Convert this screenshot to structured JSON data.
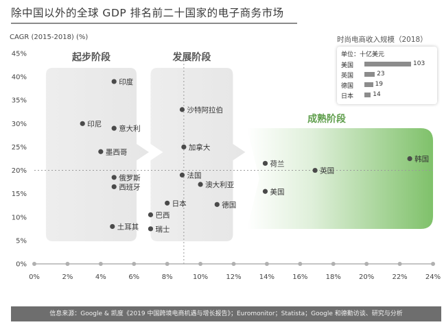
{
  "title": "除中国以外的全球 GDP 排名前二十国家的电子商务市场",
  "footer": "信息来源：Google & 凯度《2019 中国跨境电商机遇与增长报告》；Euromonitor；Statista；Google 和德勤访谈、研究与分析",
  "colors": {
    "stage_gray": "#e6e6e6",
    "stage_green": "#7fc16a",
    "dot": "#4a4a4a",
    "axis": "#b0b0b0",
    "inset_bar": "#8c8c8c"
  },
  "inset": {
    "title": "时尚电商收入规模（2018）",
    "unit": "单位：十亿美元",
    "rows": [
      {
        "label": "美国",
        "value": 103
      },
      {
        "label": "英国",
        "value": 23
      },
      {
        "label": "德国",
        "value": 19
      },
      {
        "label": "日本",
        "value": 14
      }
    ]
  },
  "chart_data": {
    "type": "scatter",
    "title": "除中国以外的全球 GDP 排名前二十国家的电子商务市场",
    "ylabel": "CAGR (2015-2018) (%)",
    "xlabel": "",
    "xlim": [
      0,
      24
    ],
    "ylim": [
      0,
      45
    ],
    "x_ticks": [
      0,
      2,
      4,
      6,
      8,
      10,
      12,
      14,
      16,
      18,
      20,
      22,
      24
    ],
    "y_ticks": [
      0,
      5,
      10,
      15,
      20,
      25,
      30,
      35,
      40,
      45
    ],
    "x_tick_labels": [
      "0%",
      "2%",
      "4%",
      "6%",
      "8%",
      "10%",
      "12%",
      "14%",
      "16%",
      "18%",
      "20%",
      "22%",
      "24%"
    ],
    "y_tick_labels": [
      "0%",
      "5%",
      "10%",
      "15%",
      "20%",
      "25%",
      "30%",
      "35%",
      "40%",
      "45%"
    ],
    "reference_lines": {
      "x": 9,
      "y": 20
    },
    "stages": [
      {
        "label": "起步阶段",
        "x_range": [
          0.7,
          6.9
        ]
      },
      {
        "label": "发展阶段",
        "x_range": [
          7.0,
          12.7
        ]
      },
      {
        "label": "成熟阶段",
        "x_range": [
          12.8,
          24.0
        ]
      }
    ],
    "points": [
      {
        "name": "印度",
        "x": 4.8,
        "y": 39
      },
      {
        "name": "印尼",
        "x": 2.9,
        "y": 30
      },
      {
        "name": "意大利",
        "x": 4.8,
        "y": 29
      },
      {
        "name": "墨西哥",
        "x": 4.0,
        "y": 24
      },
      {
        "name": "俄罗斯",
        "x": 4.8,
        "y": 18.5
      },
      {
        "name": "西班牙",
        "x": 4.8,
        "y": 16.5
      },
      {
        "name": "土耳其",
        "x": 4.7,
        "y": 8
      },
      {
        "name": "沙特阿拉伯",
        "x": 8.9,
        "y": 33
      },
      {
        "name": "加拿大",
        "x": 9.0,
        "y": 25
      },
      {
        "name": "法国",
        "x": 8.9,
        "y": 19
      },
      {
        "name": "澳大利亚",
        "x": 10.0,
        "y": 17
      },
      {
        "name": "德国",
        "x": 11.0,
        "y": 12.7
      },
      {
        "name": "日本",
        "x": 8.0,
        "y": 13
      },
      {
        "name": "巴西",
        "x": 7.0,
        "y": 10.5
      },
      {
        "name": "瑞士",
        "x": 7.0,
        "y": 7.5
      },
      {
        "name": "荷兰",
        "x": 13.9,
        "y": 21.5
      },
      {
        "name": "美国",
        "x": 13.9,
        "y": 15.5
      },
      {
        "name": "英国",
        "x": 16.9,
        "y": 20
      },
      {
        "name": "韩国",
        "x": 22.6,
        "y": 22.5
      }
    ]
  }
}
